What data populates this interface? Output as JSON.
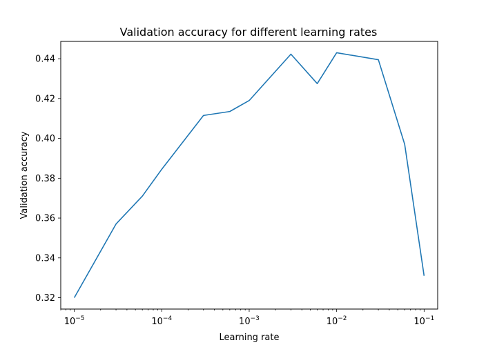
{
  "chart_data": {
    "type": "line",
    "title": "Validation accuracy for different learning rates",
    "xlabel": "Learning rate",
    "ylabel": "Validation accuracy",
    "xscale": "log",
    "xlim": [
      7e-06,
      0.143
    ],
    "ylim": [
      0.3143,
      0.4487
    ],
    "grid": false,
    "color": "#1f77b4",
    "x_ticks": [
      {
        "value": 1e-05,
        "base": "10",
        "exp": "−5"
      },
      {
        "value": 0.0001,
        "base": "10",
        "exp": "−4"
      },
      {
        "value": 0.001,
        "base": "10",
        "exp": "−3"
      },
      {
        "value": 0.01,
        "base": "10",
        "exp": "−2"
      },
      {
        "value": 0.1,
        "base": "10",
        "exp": "−1"
      }
    ],
    "y_ticks": [
      "0.32",
      "0.34",
      "0.36",
      "0.38",
      "0.40",
      "0.42",
      "0.44"
    ],
    "series": [
      {
        "x": [
          1e-05,
          3e-05,
          6e-05,
          0.0001,
          0.0003,
          0.0006,
          0.001,
          0.003,
          0.006,
          0.01,
          0.03,
          0.06,
          0.1
        ],
        "y": [
          0.32,
          0.357,
          0.371,
          0.3845,
          0.4115,
          0.4135,
          0.419,
          0.4423,
          0.4275,
          0.443,
          0.4395,
          0.397,
          0.331
        ]
      }
    ]
  }
}
